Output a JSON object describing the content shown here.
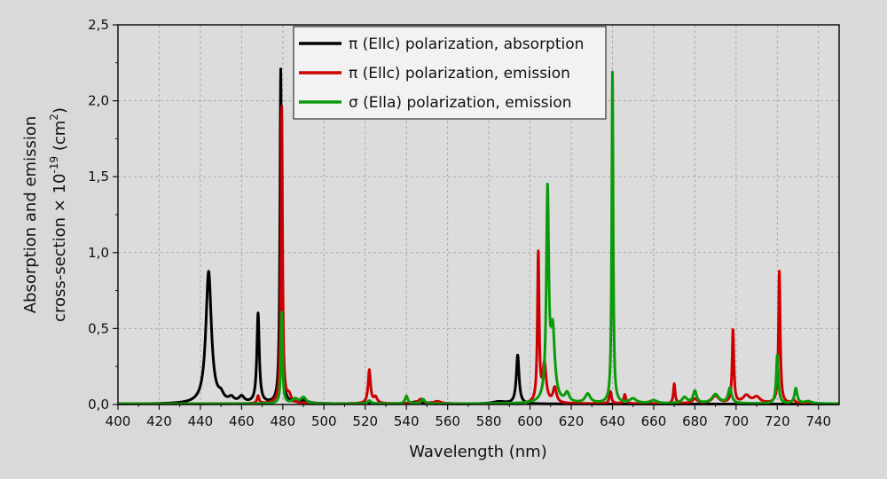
{
  "chart_data": {
    "type": "line",
    "title": "",
    "xlabel": "Wavelength (nm)",
    "ylabel_line1": "Absorption and emission",
    "ylabel_line2": "cross-section × 10",
    "ylabel_exponent": "-19",
    "ylabel_unit": " (cm",
    "ylabel_unit_exp": "2",
    "ylabel_close": ")",
    "xlim": [
      400,
      750
    ],
    "ylim": [
      0,
      2.5
    ],
    "x_ticks": [
      400,
      420,
      440,
      460,
      480,
      500,
      520,
      540,
      560,
      580,
      600,
      620,
      640,
      660,
      680,
      700,
      720,
      740
    ],
    "x_tick_labels": [
      "400",
      "420",
      "440",
      "460",
      "480",
      "500",
      "520",
      "540",
      "560",
      "580",
      "600",
      "620",
      "640",
      "660",
      "680",
      "700",
      "720",
      "740"
    ],
    "y_ticks": [
      0,
      0.5,
      1.0,
      1.5,
      2.0,
      2.5
    ],
    "y_tick_labels": [
      "0,0",
      "0,5",
      "1,0",
      "1,5",
      "2,0",
      "2,5"
    ],
    "grid": true,
    "legend_position": "top-center",
    "series": [
      {
        "name": "π (Ellc) polarization, absorption",
        "color": "#000000",
        "baseline": 0.003,
        "peaks": [
          {
            "x": 444,
            "h": 0.87,
            "w": 1.6
          },
          {
            "x": 450,
            "h": 0.04,
            "w": 1.5
          },
          {
            "x": 455,
            "h": 0.03,
            "w": 1.5
          },
          {
            "x": 460,
            "h": 0.04,
            "w": 1.5
          },
          {
            "x": 468,
            "h": 0.59,
            "w": 0.7
          },
          {
            "x": 479,
            "h": 2.2,
            "w": 0.45
          },
          {
            "x": 490,
            "h": 0.02,
            "w": 3
          },
          {
            "x": 520,
            "h": 0.01,
            "w": 3
          },
          {
            "x": 545,
            "h": 0.015,
            "w": 3
          },
          {
            "x": 585,
            "h": 0.015,
            "w": 4
          },
          {
            "x": 594,
            "h": 0.32,
            "w": 0.8
          }
        ]
      },
      {
        "name": "π (Ellc) polarization, emission",
        "color": "#cc0000",
        "baseline": 0.005,
        "peaks": [
          {
            "x": 468,
            "h": 0.05,
            "w": 0.6
          },
          {
            "x": 479.5,
            "h": 1.95,
            "w": 0.45
          },
          {
            "x": 483,
            "h": 0.05,
            "w": 1.2
          },
          {
            "x": 522,
            "h": 0.22,
            "w": 0.7
          },
          {
            "x": 525,
            "h": 0.04,
            "w": 1
          },
          {
            "x": 547,
            "h": 0.03,
            "w": 1.5
          },
          {
            "x": 555,
            "h": 0.015,
            "w": 2
          },
          {
            "x": 604,
            "h": 0.98,
            "w": 0.5
          },
          {
            "x": 607,
            "h": 0.25,
            "w": 1
          },
          {
            "x": 612,
            "h": 0.1,
            "w": 1
          },
          {
            "x": 639,
            "h": 0.08,
            "w": 0.6
          },
          {
            "x": 646,
            "h": 0.06,
            "w": 0.6
          },
          {
            "x": 670,
            "h": 0.13,
            "w": 0.5
          },
          {
            "x": 680,
            "h": 0.03,
            "w": 1.5
          },
          {
            "x": 690,
            "h": 0.05,
            "w": 2
          },
          {
            "x": 698.5,
            "h": 0.48,
            "w": 0.5
          },
          {
            "x": 705,
            "h": 0.05,
            "w": 2
          },
          {
            "x": 710,
            "h": 0.04,
            "w": 2
          },
          {
            "x": 721,
            "h": 0.87,
            "w": 0.5
          },
          {
            "x": 728,
            "h": 0.02,
            "w": 1
          }
        ]
      },
      {
        "name": "σ (Ella) polarization, emission",
        "color": "#0a9a0a",
        "baseline": 0.005,
        "peaks": [
          {
            "x": 479.5,
            "h": 0.6,
            "w": 0.45
          },
          {
            "x": 486,
            "h": 0.03,
            "w": 1.5
          },
          {
            "x": 490,
            "h": 0.04,
            "w": 1.5
          },
          {
            "x": 522,
            "h": 0.02,
            "w": 1
          },
          {
            "x": 540,
            "h": 0.05,
            "w": 0.8
          },
          {
            "x": 548,
            "h": 0.03,
            "w": 1
          },
          {
            "x": 608.5,
            "h": 1.36,
            "w": 0.7
          },
          {
            "x": 611,
            "h": 0.45,
            "w": 1.2
          },
          {
            "x": 618,
            "h": 0.06,
            "w": 1.2
          },
          {
            "x": 628,
            "h": 0.06,
            "w": 1.5
          },
          {
            "x": 640,
            "h": 2.18,
            "w": 0.4
          },
          {
            "x": 650,
            "h": 0.03,
            "w": 2
          },
          {
            "x": 660,
            "h": 0.02,
            "w": 2
          },
          {
            "x": 675,
            "h": 0.04,
            "w": 1.5
          },
          {
            "x": 680,
            "h": 0.08,
            "w": 1
          },
          {
            "x": 690,
            "h": 0.06,
            "w": 2
          },
          {
            "x": 697,
            "h": 0.1,
            "w": 1
          },
          {
            "x": 720,
            "h": 0.32,
            "w": 0.6
          },
          {
            "x": 729,
            "h": 0.1,
            "w": 0.8
          },
          {
            "x": 735,
            "h": 0.015,
            "w": 2
          }
        ]
      }
    ]
  }
}
